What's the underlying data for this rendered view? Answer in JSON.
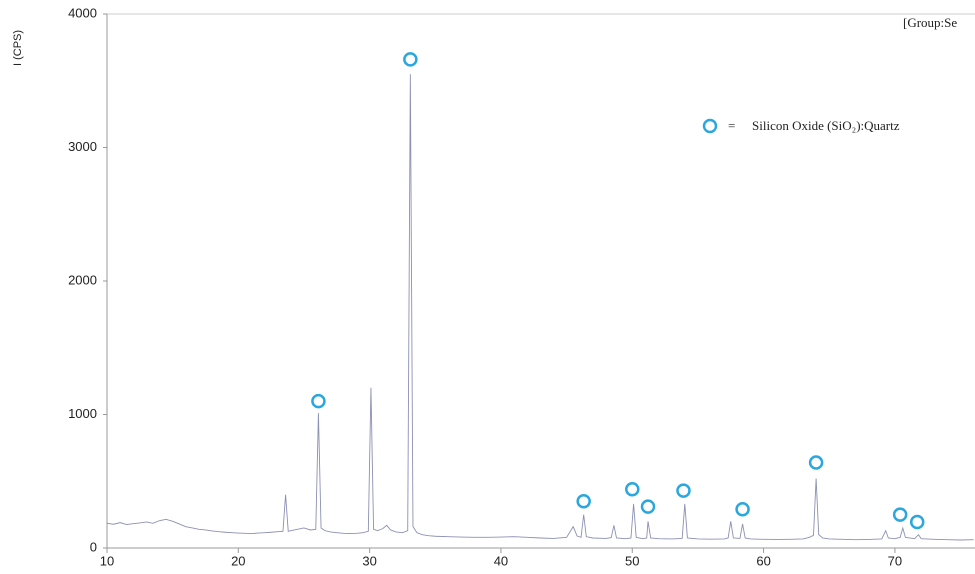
{
  "chart_data": {
    "type": "line",
    "title": "[Group:Se",
    "y_label": "I (CPS)",
    "x": [
      10,
      10.5,
      11,
      11.5,
      12,
      12.5,
      13,
      13.5,
      14,
      14.5,
      15,
      15.5,
      16,
      16.5,
      17,
      17.5,
      18,
      18.5,
      19,
      19.5,
      20,
      20.5,
      21,
      21.5,
      22,
      22.5,
      23,
      23.4,
      23.6,
      23.8,
      24,
      24.5,
      25,
      25.5,
      25.9,
      26.1,
      26.3,
      26.6,
      27,
      27.5,
      28,
      28.5,
      29,
      29.5,
      29.9,
      30.1,
      30.3,
      30.6,
      31,
      31.3,
      31.6,
      32,
      32.5,
      32.9,
      33.1,
      33.3,
      33.6,
      34,
      34.5,
      35,
      36,
      37,
      38,
      39,
      40,
      41,
      42,
      43,
      44,
      45,
      45.5,
      45.8,
      46.1,
      46.3,
      46.5,
      47,
      48,
      48.4,
      48.6,
      48.8,
      49.5,
      49.9,
      50.1,
      50.3,
      50.8,
      51.1,
      51.2,
      51.4,
      52,
      53,
      53.8,
      54,
      54.2,
      55,
      56,
      57,
      57.3,
      57.5,
      57.7,
      58.2,
      58.4,
      58.6,
      59,
      60,
      61,
      62,
      63,
      63.5,
      63.8,
      64,
      64.2,
      64.5,
      65,
      66,
      67,
      68,
      69,
      69.3,
      69.5,
      70,
      70.4,
      70.6,
      70.8,
      71.5,
      71.8,
      72,
      73,
      74,
      75,
      76
    ],
    "values": [
      185,
      178,
      190,
      176,
      182,
      188,
      195,
      185,
      205,
      215,
      200,
      180,
      160,
      150,
      140,
      135,
      128,
      122,
      118,
      115,
      112,
      110,
      108,
      112,
      115,
      118,
      122,
      125,
      400,
      125,
      130,
      140,
      150,
      135,
      140,
      1010,
      150,
      130,
      120,
      115,
      110,
      108,
      110,
      115,
      125,
      1200,
      140,
      130,
      145,
      170,
      135,
      120,
      115,
      130,
      3550,
      160,
      115,
      100,
      92,
      88,
      85,
      82,
      80,
      80,
      82,
      85,
      80,
      75,
      72,
      80,
      160,
      90,
      80,
      250,
      85,
      75,
      72,
      78,
      170,
      75,
      70,
      75,
      330,
      80,
      70,
      75,
      200,
      75,
      70,
      68,
      72,
      330,
      75,
      68,
      66,
      68,
      75,
      200,
      75,
      72,
      180,
      75,
      68,
      65,
      64,
      65,
      68,
      80,
      95,
      520,
      100,
      75,
      68,
      65,
      62,
      64,
      68,
      130,
      75,
      70,
      80,
      150,
      80,
      70,
      100,
      70,
      65,
      62,
      60,
      62
    ],
    "color": "#8c90b4",
    "phase_markers": {
      "name": "Silicon Oxide (SiO₂):Quartz",
      "separator": "=",
      "color": "#2aa7de",
      "x": [
        26.1,
        33.1,
        46.3,
        50.0,
        51.2,
        53.9,
        58.4,
        64.0,
        70.4,
        71.7
      ],
      "y": [
        1100,
        3660,
        350,
        440,
        310,
        430,
        290,
        640,
        250,
        195
      ]
    },
    "xlim": [
      10,
      76.1
    ],
    "ylim": [
      0,
      4000
    ],
    "xticks": [
      10,
      20,
      30,
      40,
      50,
      60,
      70
    ],
    "yticks": [
      0,
      1000,
      2000,
      3000,
      4000
    ]
  }
}
